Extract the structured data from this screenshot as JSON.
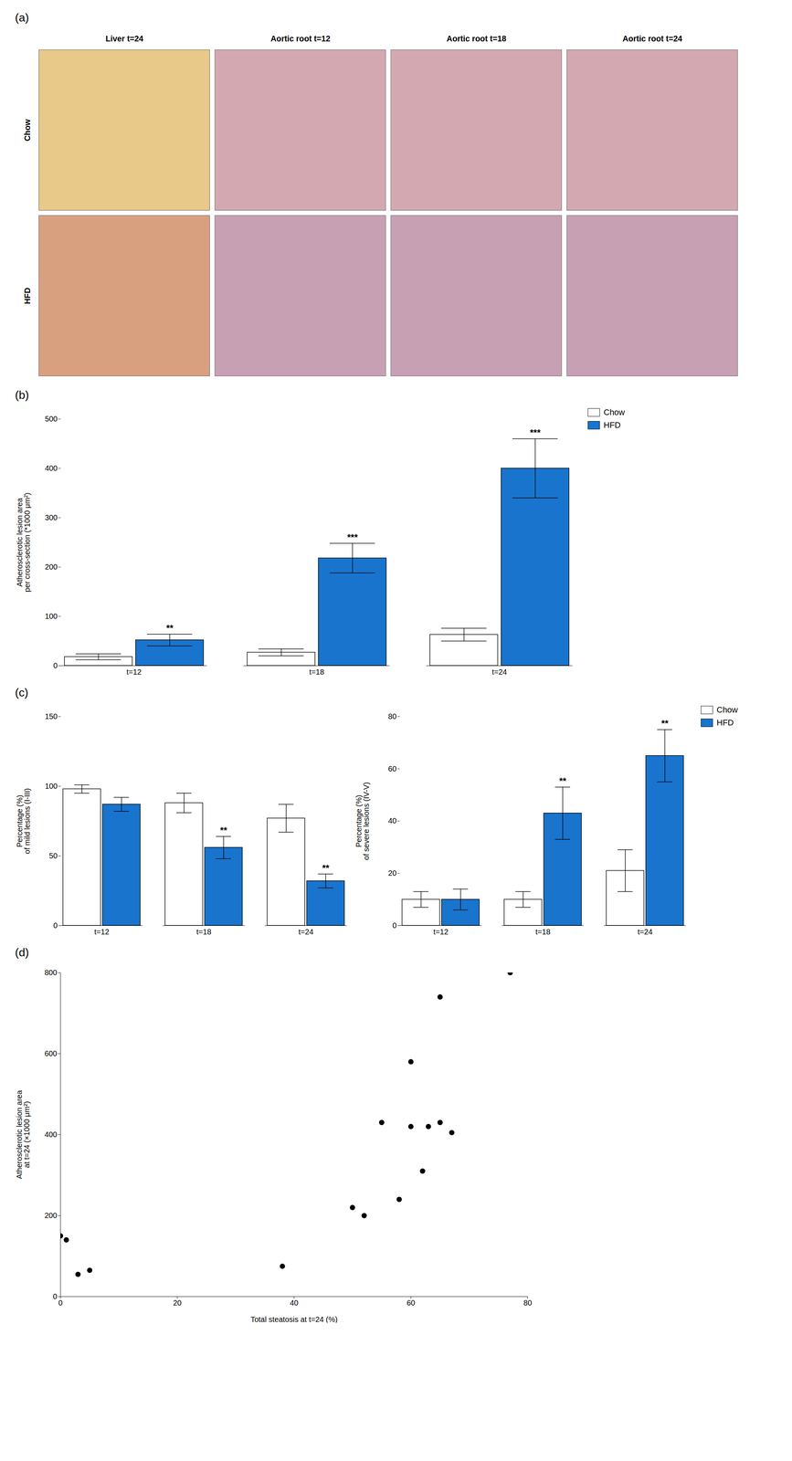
{
  "chart_data": [
    {
      "type": "tiles",
      "title": "(a)",
      "categories": [
        "Liver t=24",
        "Aortic root t=12",
        "Aortic root t=18",
        "Aortic root t=24"
      ],
      "series": [
        {
          "name": "Chow",
          "colors": [
            "#e8c98a",
            "#d4a8b0",
            "#d4a8b0",
            "#d4a8b0"
          ]
        },
        {
          "name": "HFD",
          "colors": [
            "#d9a080",
            "#c8a0b4",
            "#c8a0b4",
            "#c8a0b4"
          ]
        }
      ]
    },
    {
      "type": "bar",
      "title": "(b)",
      "categories": [
        "t=12",
        "t=18",
        "t=24"
      ],
      "series": [
        {
          "name": "Chow",
          "color": "white",
          "values": [
            18,
            27,
            63
          ],
          "errors": [
            6,
            7,
            13
          ]
        },
        {
          "name": "HFD",
          "color": "#1874CD",
          "values": [
            52,
            218,
            400
          ],
          "errors": [
            12,
            30,
            60
          ],
          "annotations": [
            "**",
            "***",
            "***"
          ]
        }
      ],
      "ylabel": "Atherosclerotic lesion area\nper cross-section (*1000 μm²)",
      "ylim": [
        0,
        500
      ],
      "yticks": [
        0,
        100,
        200,
        300,
        400,
        500
      ],
      "legend": "upper right"
    },
    {
      "type": "bar",
      "title": "(c)",
      "categories": [
        "t=12",
        "t=18",
        "t=24"
      ],
      "series": [
        {
          "name": "Chow",
          "color": "white",
          "values": [
            98,
            88,
            77
          ],
          "errors": [
            3,
            7,
            10
          ]
        },
        {
          "name": "HFD",
          "color": "#1874CD",
          "values": [
            87,
            56,
            32
          ],
          "errors": [
            5,
            8,
            5
          ],
          "annotations": [
            null,
            "**",
            "**"
          ]
        }
      ],
      "ylabel": "Percentage (%)\nof mild lesions (I-III)",
      "ylim": [
        0,
        150
      ],
      "yticks": [
        0,
        50,
        100,
        150
      ]
    },
    {
      "type": "bar",
      "categories": [
        "t=12",
        "t=18",
        "t=24"
      ],
      "series": [
        {
          "name": "Chow",
          "color": "white",
          "values": [
            10,
            10,
            21
          ],
          "errors": [
            3,
            3,
            8
          ]
        },
        {
          "name": "HFD",
          "color": "#1874CD",
          "values": [
            10,
            43,
            65
          ],
          "errors": [
            4,
            10,
            10
          ],
          "annotations": [
            null,
            "**",
            "**"
          ]
        }
      ],
      "ylabel": "Percentage (%)\nof severe lesions (IV-V)",
      "ylim": [
        0,
        80
      ],
      "yticks": [
        0,
        20,
        40,
        60,
        80
      ],
      "legend": "upper right"
    },
    {
      "type": "scatter",
      "title": "(d)",
      "x": [
        0,
        1,
        3,
        5,
        38,
        50,
        52,
        55,
        58,
        60,
        60,
        62,
        63,
        65,
        65,
        67,
        77
      ],
      "values": [
        150,
        140,
        55,
        65,
        75,
        220,
        200,
        430,
        240,
        420,
        580,
        310,
        420,
        430,
        740,
        405,
        800
      ],
      "color": "black",
      "xlabel": "Total steatosis at t=24 (%)",
      "ylabel": "Atherosclerotic lesion area\nat t=24 (×1000 μm²)",
      "xlim": [
        0,
        80
      ],
      "ylim": [
        0,
        800
      ],
      "xticks": [
        0,
        20,
        40,
        60,
        80
      ],
      "yticks": [
        0,
        200,
        400,
        600,
        800
      ]
    }
  ]
}
